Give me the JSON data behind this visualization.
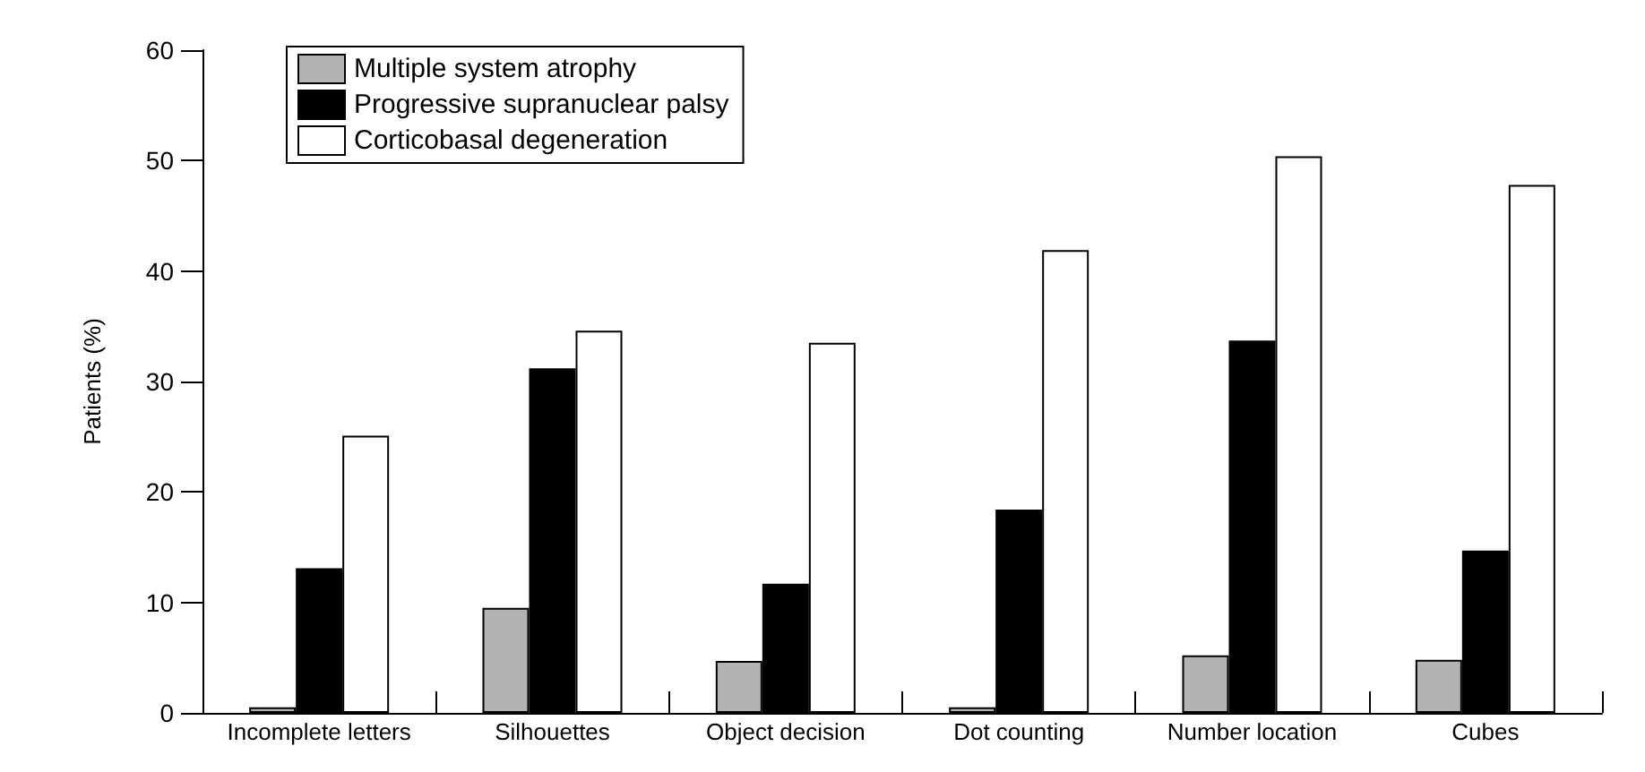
{
  "chart_data": {
    "type": "bar",
    "ylabel": "Patients (%)",
    "categories": [
      "Incomplete letters",
      "Silhouettes",
      "Object decision",
      "Dot counting",
      "Number location",
      "Cubes"
    ],
    "series": [
      {
        "name": "Multiple system atrophy",
        "color": "#b3b3b3",
        "values": [
          0.5,
          9.5,
          4.7,
          0.5,
          5.2,
          4.8
        ]
      },
      {
        "name": "Progressive supranuclear palsy",
        "color": "#000000",
        "values": [
          13.1,
          31.2,
          11.7,
          18.4,
          33.7,
          14.7
        ]
      },
      {
        "name": "Corticobasal degeneration",
        "color": "#ffffff",
        "values": [
          25.1,
          34.6,
          33.5,
          41.9,
          50.4,
          47.8
        ]
      }
    ],
    "ylim": [
      0,
      60
    ],
    "yticks": [
      0,
      10,
      20,
      30,
      40,
      50,
      60
    ],
    "grid": false,
    "legend": "top left"
  }
}
